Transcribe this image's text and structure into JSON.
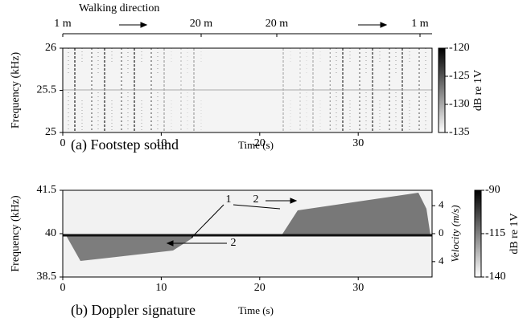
{
  "chart_data": [
    {
      "type": "spectrogram",
      "caption": "(a) Footstep sound",
      "xlabel": "Time (s)",
      "ylabel": "Frequency (kHz)",
      "xlim": [
        0,
        37.5
      ],
      "xticks": [
        0,
        10,
        20,
        30
      ],
      "ylim": [
        25,
        26
      ],
      "yticks": [
        25,
        25.5,
        26
      ],
      "colorbar_label": "dB re 1V",
      "clim": [
        -135,
        -120
      ],
      "cticks": [
        -120,
        -125,
        -130,
        -135
      ],
      "top_labels": [
        "1 m",
        "20 m",
        "20 m",
        "1 m"
      ],
      "direction_label": "Walking direction"
    },
    {
      "type": "spectrogram",
      "caption": "(b) Doppler signature",
      "xlabel": "Time (s)",
      "ylabel": "Frequency (kHz)",
      "xlim": [
        0,
        37.5
      ],
      "xticks": [
        0,
        10,
        20,
        30
      ],
      "ylim": [
        38.5,
        41.5
      ],
      "yticks": [
        38.5,
        40,
        41.5
      ],
      "y2label": "Velocity (m/s)",
      "y2lim": [
        -6.2,
        6.2
      ],
      "y2ticks": [
        {
          "value": 4,
          "label": "4"
        },
        0,
        {
          "value": -4,
          "label": "4"
        }
      ],
      "colorbar_label": "dB re 1V",
      "clim": [
        -140,
        -90
      ],
      "cticks": [
        -90,
        -115,
        -140
      ],
      "annotations": [
        "1",
        "2",
        "2"
      ]
    }
  ]
}
